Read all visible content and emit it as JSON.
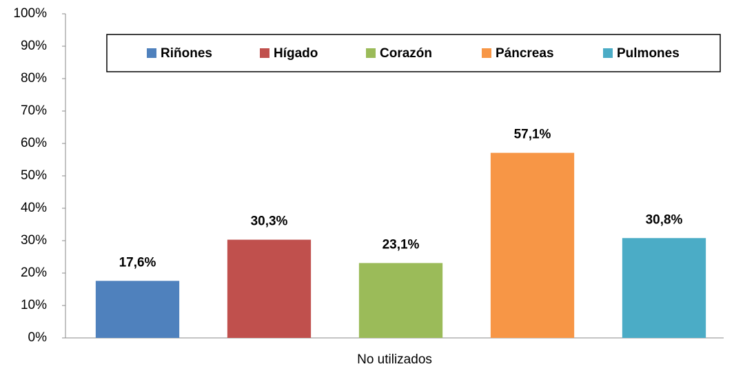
{
  "chart_data": {
    "type": "bar",
    "categories": [
      "No utilizados"
    ],
    "series": [
      {
        "name": "Riñones",
        "color": "#4f81bd",
        "values": [
          17.6
        ],
        "value_labels": [
          "17,6%"
        ]
      },
      {
        "name": "Hígado",
        "color": "#c0504d",
        "values": [
          30.3
        ],
        "value_labels": [
          "30,3%"
        ]
      },
      {
        "name": "Corazón",
        "color": "#9bbb59",
        "values": [
          23.1
        ],
        "value_labels": [
          "23,1%"
        ]
      },
      {
        "name": "Páncreas",
        "color": "#f79646",
        "values": [
          57.1
        ],
        "value_labels": [
          "57,1%"
        ]
      },
      {
        "name": "Pulmones",
        "color": "#4bacc6",
        "values": [
          30.8
        ],
        "value_labels": [
          "30,8%"
        ]
      }
    ],
    "ylim": [
      0,
      100
    ],
    "yticks": [
      {
        "value": 0,
        "label": "0%"
      },
      {
        "value": 10,
        "label": "10%"
      },
      {
        "value": 20,
        "label": "20%"
      },
      {
        "value": 30,
        "label": "30%"
      },
      {
        "value": 40,
        "label": "40%"
      },
      {
        "value": 50,
        "label": "50%"
      },
      {
        "value": 60,
        "label": "60%"
      },
      {
        "value": 70,
        "label": "70%"
      },
      {
        "value": 80,
        "label": "80%"
      },
      {
        "value": 90,
        "label": "90%"
      },
      {
        "value": 100,
        "label": "100%"
      }
    ],
    "legend": "top"
  }
}
